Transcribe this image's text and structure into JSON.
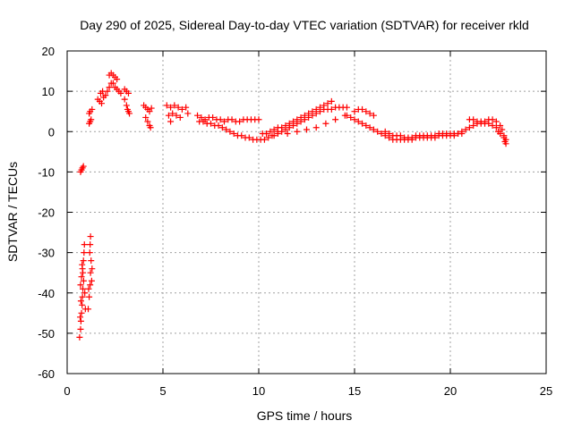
{
  "chart_data": {
    "type": "scatter",
    "title": "Day 290 of 2025, Sidereal Day-to-day VTEC variation (SDTVAR) for receiver rkld",
    "xlabel": "GPS time / hours",
    "ylabel": "SDTVAR / TECUs",
    "xlim": [
      0,
      25
    ],
    "ylim": [
      -60,
      20
    ],
    "xticks": [
      0,
      5,
      10,
      15,
      20,
      25
    ],
    "yticks": [
      -60,
      -50,
      -40,
      -30,
      -20,
      -10,
      0,
      10,
      20
    ],
    "grid": true,
    "marker": "+",
    "color": "#ff0000",
    "series": [
      {
        "name": "sdtvar",
        "points": [
          [
            0.65,
            -51
          ],
          [
            0.7,
            -49
          ],
          [
            0.72,
            -47
          ],
          [
            0.75,
            -45
          ],
          [
            0.78,
            -43
          ],
          [
            0.8,
            -41
          ],
          [
            0.82,
            -39
          ],
          [
            0.7,
            -38
          ],
          [
            0.75,
            -36
          ],
          [
            0.8,
            -34
          ],
          [
            0.85,
            -32
          ],
          [
            0.88,
            -30
          ],
          [
            0.9,
            -28
          ],
          [
            0.78,
            -33
          ],
          [
            0.82,
            -35
          ],
          [
            0.86,
            -37
          ],
          [
            0.92,
            -40
          ],
          [
            0.95,
            -44
          ],
          [
            0.68,
            -46
          ],
          [
            0.72,
            -42
          ],
          [
            1.1,
            -44
          ],
          [
            1.15,
            -41
          ],
          [
            1.2,
            -38
          ],
          [
            1.22,
            -35
          ],
          [
            1.25,
            -32
          ],
          [
            1.18,
            -30
          ],
          [
            1.2,
            -28
          ],
          [
            1.22,
            -26
          ],
          [
            1.3,
            -34
          ],
          [
            1.28,
            -37
          ],
          [
            1.12,
            -39
          ],
          [
            0.7,
            -10
          ],
          [
            0.75,
            -9.5
          ],
          [
            0.8,
            -9
          ],
          [
            0.85,
            -8.6
          ],
          [
            1.15,
            2
          ],
          [
            1.2,
            2.5
          ],
          [
            1.25,
            3
          ],
          [
            1.15,
            4.5
          ],
          [
            1.2,
            5
          ],
          [
            1.3,
            5.5
          ],
          [
            1.6,
            8
          ],
          [
            1.7,
            7.5
          ],
          [
            1.8,
            7
          ],
          [
            1.9,
            8.5
          ],
          [
            2.0,
            9
          ],
          [
            2.1,
            10
          ],
          [
            1.75,
            9.5
          ],
          [
            1.85,
            10
          ],
          [
            2.2,
            11
          ],
          [
            2.3,
            12
          ],
          [
            2.2,
            14
          ],
          [
            2.3,
            14.5
          ],
          [
            2.4,
            14
          ],
          [
            2.5,
            13.5
          ],
          [
            2.6,
            13
          ],
          [
            2.4,
            12
          ],
          [
            2.5,
            11
          ],
          [
            2.6,
            10.5
          ],
          [
            2.7,
            10
          ],
          [
            2.8,
            9.5
          ],
          [
            3.0,
            10.5
          ],
          [
            3.1,
            10
          ],
          [
            3.2,
            9.5
          ],
          [
            3.0,
            8
          ],
          [
            3.1,
            6.5
          ],
          [
            3.15,
            5.5
          ],
          [
            3.2,
            5
          ],
          [
            3.25,
            4.5
          ],
          [
            4.0,
            6.5
          ],
          [
            4.1,
            6
          ],
          [
            4.2,
            5.5
          ],
          [
            4.3,
            5
          ],
          [
            4.1,
            3.5
          ],
          [
            4.2,
            2.5
          ],
          [
            4.3,
            1.5
          ],
          [
            4.35,
            1
          ],
          [
            4.4,
            5.8
          ],
          [
            5.2,
            6.5
          ],
          [
            5.4,
            6
          ],
          [
            5.6,
            6.5
          ],
          [
            5.8,
            6
          ],
          [
            6.0,
            5.5
          ],
          [
            5.3,
            4
          ],
          [
            5.5,
            4.5
          ],
          [
            5.7,
            4
          ],
          [
            5.9,
            3.5
          ],
          [
            6.2,
            6
          ],
          [
            6.3,
            4.5
          ],
          [
            5.4,
            2.5
          ],
          [
            6.8,
            4
          ],
          [
            7.0,
            3.5
          ],
          [
            7.2,
            3
          ],
          [
            7.4,
            3.5
          ],
          [
            7.6,
            3.5
          ],
          [
            7.8,
            3
          ],
          [
            8.0,
            3
          ],
          [
            8.2,
            2.5
          ],
          [
            8.4,
            3
          ],
          [
            8.6,
            3
          ],
          [
            8.8,
            2.5
          ],
          [
            9.0,
            2.5
          ],
          [
            9.2,
            3
          ],
          [
            9.4,
            3
          ],
          [
            9.6,
            3
          ],
          [
            9.8,
            3
          ],
          [
            10.0,
            3
          ],
          [
            6.9,
            2.5
          ],
          [
            7.1,
            2.5
          ],
          [
            7.3,
            2
          ],
          [
            7.5,
            2
          ],
          [
            7.7,
            1.5
          ],
          [
            7.9,
            1.5
          ],
          [
            8.1,
            1
          ],
          [
            8.3,
            0.5
          ],
          [
            8.5,
            0
          ],
          [
            8.7,
            -0.5
          ],
          [
            8.9,
            -1
          ],
          [
            9.1,
            -1
          ],
          [
            9.3,
            -1.5
          ],
          [
            9.5,
            -1.5
          ],
          [
            9.7,
            -2
          ],
          [
            9.9,
            -2
          ],
          [
            10.1,
            -2
          ],
          [
            10.3,
            -2
          ],
          [
            10.5,
            -1.5
          ],
          [
            10.7,
            -1
          ],
          [
            10.2,
            -0.5
          ],
          [
            10.4,
            -0.5
          ],
          [
            10.6,
            0
          ],
          [
            10.8,
            0.5
          ],
          [
            11.0,
            1
          ],
          [
            11.2,
            1
          ],
          [
            11.4,
            1.5
          ],
          [
            11.6,
            2
          ],
          [
            11.8,
            2.5
          ],
          [
            12.0,
            3
          ],
          [
            12.2,
            3.5
          ],
          [
            12.4,
            4
          ],
          [
            12.6,
            4.5
          ],
          [
            12.8,
            5
          ],
          [
            13.0,
            5.5
          ],
          [
            13.2,
            6
          ],
          [
            13.4,
            6.5
          ],
          [
            13.6,
            7
          ],
          [
            13.8,
            7.5
          ],
          [
            10.8,
            -1
          ],
          [
            11.0,
            -0.5
          ],
          [
            11.2,
            0
          ],
          [
            11.4,
            0.5
          ],
          [
            11.6,
            1
          ],
          [
            11.8,
            1.5
          ],
          [
            12.0,
            2
          ],
          [
            12.2,
            2.5
          ],
          [
            12.4,
            3
          ],
          [
            12.6,
            3.5
          ],
          [
            12.8,
            4
          ],
          [
            13.0,
            4.5
          ],
          [
            13.2,
            5
          ],
          [
            13.4,
            5.5
          ],
          [
            13.6,
            5.5
          ],
          [
            13.8,
            5.5
          ],
          [
            14.0,
            6
          ],
          [
            14.2,
            6
          ],
          [
            14.4,
            6
          ],
          [
            14.6,
            6
          ],
          [
            11.0,
            0
          ],
          [
            11.5,
            -0.5
          ],
          [
            12.0,
            0
          ],
          [
            12.5,
            0.5
          ],
          [
            13.0,
            1
          ],
          [
            13.5,
            2
          ],
          [
            14.0,
            3
          ],
          [
            14.5,
            4
          ],
          [
            15.0,
            5
          ],
          [
            15.2,
            5.5
          ],
          [
            15.4,
            5.5
          ],
          [
            15.6,
            5
          ],
          [
            15.8,
            4.5
          ],
          [
            16.0,
            4
          ],
          [
            14.6,
            4
          ],
          [
            14.8,
            3.5
          ],
          [
            15.0,
            3
          ],
          [
            15.2,
            2.5
          ],
          [
            15.4,
            2
          ],
          [
            15.6,
            1.5
          ],
          [
            15.8,
            1
          ],
          [
            16.0,
            0.5
          ],
          [
            16.2,
            0
          ],
          [
            16.4,
            -0.5
          ],
          [
            16.6,
            -1
          ],
          [
            16.6,
            0
          ],
          [
            16.8,
            -0.5
          ],
          [
            17.0,
            -1
          ],
          [
            17.2,
            -1
          ],
          [
            17.4,
            -1
          ],
          [
            17.6,
            -1.5
          ],
          [
            17.8,
            -1.5
          ],
          [
            18.0,
            -1.5
          ],
          [
            18.2,
            -1
          ],
          [
            18.4,
            -1
          ],
          [
            18.6,
            -1
          ],
          [
            18.8,
            -1.5
          ],
          [
            19.0,
            -1
          ],
          [
            19.2,
            -1
          ],
          [
            19.4,
            -0.5
          ],
          [
            19.6,
            -0.5
          ],
          [
            19.8,
            -0.5
          ],
          [
            20.0,
            -0.5
          ],
          [
            20.2,
            -0.5
          ],
          [
            20.4,
            -0.5
          ],
          [
            20.6,
            -0.5
          ],
          [
            16.8,
            -1.5
          ],
          [
            17.0,
            -2
          ],
          [
            17.2,
            -2
          ],
          [
            17.4,
            -2
          ],
          [
            17.6,
            -2
          ],
          [
            17.8,
            -2
          ],
          [
            18.0,
            -2
          ],
          [
            18.2,
            -1.5
          ],
          [
            18.4,
            -1.5
          ],
          [
            18.6,
            -1.5
          ],
          [
            18.8,
            -1
          ],
          [
            19.0,
            -1.5
          ],
          [
            19.2,
            -1.5
          ],
          [
            19.4,
            -1
          ],
          [
            19.6,
            -1
          ],
          [
            19.8,
            -1
          ],
          [
            20.0,
            -1
          ],
          [
            20.2,
            -1
          ],
          [
            20.4,
            -0.5
          ],
          [
            20.6,
            0
          ],
          [
            20.8,
            0.5
          ],
          [
            21.0,
            1
          ],
          [
            21.2,
            1.5
          ],
          [
            21.4,
            2
          ],
          [
            21.6,
            2.5
          ],
          [
            21.8,
            2.5
          ],
          [
            22.0,
            3
          ],
          [
            22.2,
            3
          ],
          [
            22.4,
            2.5
          ],
          [
            22.6,
            1.5
          ],
          [
            22.7,
            0.5
          ],
          [
            22.8,
            -1
          ],
          [
            22.9,
            -2
          ],
          [
            22.9,
            -3
          ],
          [
            21.0,
            3
          ],
          [
            21.2,
            3
          ],
          [
            21.4,
            2.5
          ],
          [
            21.6,
            2
          ],
          [
            21.8,
            2
          ],
          [
            22.0,
            2
          ],
          [
            22.2,
            1.5
          ],
          [
            22.4,
            1
          ],
          [
            22.5,
            0
          ],
          [
            22.6,
            -0.5
          ],
          [
            22.8,
            -1.5
          ],
          [
            22.85,
            -2.5
          ]
        ]
      }
    ]
  }
}
